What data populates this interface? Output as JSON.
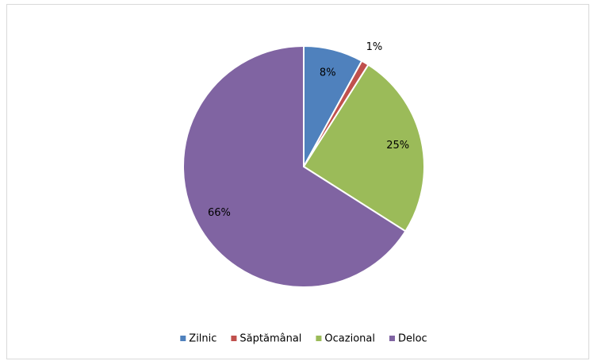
{
  "chart_data": {
    "type": "pie",
    "categories": [
      "Zilnic",
      "Săptămânal",
      "Ocazional",
      "Deloc"
    ],
    "values": [
      8,
      1,
      25,
      66
    ],
    "value_labels": [
      "8%",
      "1%",
      "25%",
      "66%"
    ],
    "colors": [
      "#4f81bd",
      "#c0504d",
      "#9bbb59",
      "#8064a2"
    ],
    "legend": "bottom"
  }
}
